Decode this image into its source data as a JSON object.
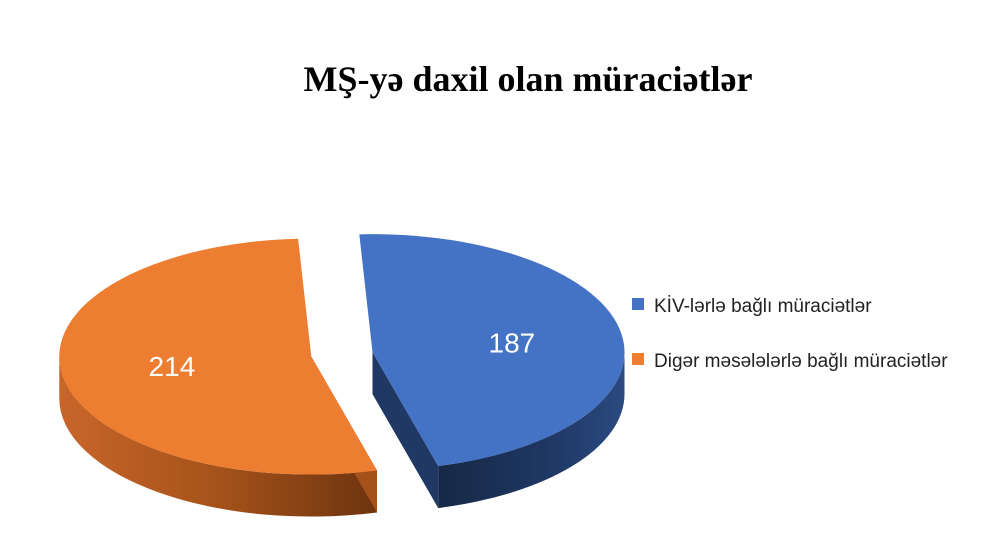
{
  "chart_data": {
    "type": "pie",
    "title": "MŞ-yə daxil olan müraciətlər",
    "categories": [
      "KİV-lərlə bağlı müraciətlər",
      "Digər məsələlərlə bağlı müraciətlər"
    ],
    "values": [
      187,
      214
    ],
    "colors": {
      "top": [
        "#4472C4",
        "#ED7D31"
      ],
      "side": [
        "#1F3864",
        "#A5521A"
      ]
    },
    "exploded": true,
    "perspective": "3d",
    "legend_position": "right",
    "data_labels": true
  }
}
